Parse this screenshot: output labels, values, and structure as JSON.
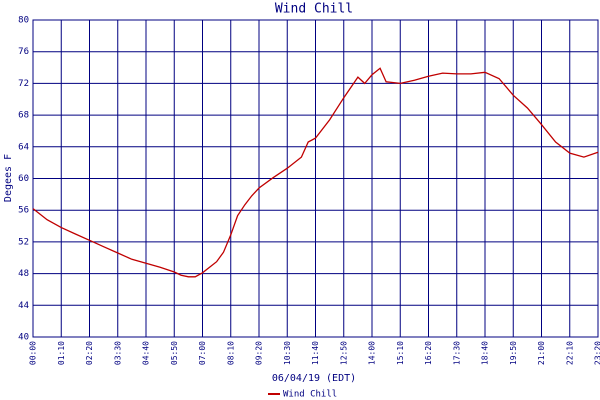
{
  "chart_data": {
    "type": "line",
    "title": "Wind Chill",
    "y_label": "Degees F",
    "x_label": "06/04/19 (EDT)",
    "x": [
      0,
      35,
      70,
      105,
      140,
      175,
      210,
      245,
      280,
      315,
      350,
      367,
      385,
      402,
      420,
      455,
      472,
      490,
      507,
      525,
      542,
      560,
      595,
      630,
      665,
      682,
      700,
      735,
      770,
      805,
      822,
      840,
      860,
      875,
      910,
      945,
      980,
      1015,
      1050,
      1085,
      1120,
      1155,
      1190,
      1225,
      1260,
      1295,
      1330,
      1365,
      1400
    ],
    "series": [
      {
        "name": "Wind Chill",
        "color": "#c00000",
        "values": [
          56.2,
          54.8,
          53.8,
          53.0,
          52.2,
          51.4,
          50.6,
          49.8,
          49.3,
          48.8,
          48.2,
          47.8,
          47.6,
          47.6,
          48.1,
          49.5,
          50.7,
          52.9,
          55.3,
          56.7,
          57.8,
          58.8,
          60.1,
          61.3,
          62.7,
          64.6,
          65.1,
          67.4,
          70.2,
          72.8,
          72.0,
          73.1,
          73.9,
          72.2,
          72.0,
          72.4,
          72.9,
          73.3,
          73.2,
          73.2,
          73.4,
          72.6,
          70.5,
          68.9,
          66.8,
          64.6,
          63.2,
          62.7,
          63.3
        ]
      }
    ],
    "xlim": [
      0,
      1400
    ],
    "xticks": [
      {
        "value": 0,
        "label": "00:00"
      },
      {
        "value": 70,
        "label": "01:10"
      },
      {
        "value": 140,
        "label": "02:20"
      },
      {
        "value": 210,
        "label": "03:30"
      },
      {
        "value": 280,
        "label": "04:40"
      },
      {
        "value": 350,
        "label": "05:50"
      },
      {
        "value": 420,
        "label": "07:00"
      },
      {
        "value": 490,
        "label": "08:10"
      },
      {
        "value": 560,
        "label": "09:20"
      },
      {
        "value": 630,
        "label": "10:30"
      },
      {
        "value": 700,
        "label": "11:40"
      },
      {
        "value": 770,
        "label": "12:50"
      },
      {
        "value": 840,
        "label": "14:00"
      },
      {
        "value": 910,
        "label": "15:10"
      },
      {
        "value": 980,
        "label": "16:20"
      },
      {
        "value": 1050,
        "label": "17:30"
      },
      {
        "value": 1120,
        "label": "18:40"
      },
      {
        "value": 1190,
        "label": "19:50"
      },
      {
        "value": 1260,
        "label": "21:00"
      },
      {
        "value": 1330,
        "label": "22:10"
      },
      {
        "value": 1400,
        "label": "23:20"
      }
    ],
    "ylim": [
      40,
      80
    ],
    "yticks": [
      40,
      44,
      48,
      52,
      56,
      60,
      64,
      68,
      72,
      76,
      80
    ],
    "grid": true,
    "grid_color": "#000080"
  }
}
